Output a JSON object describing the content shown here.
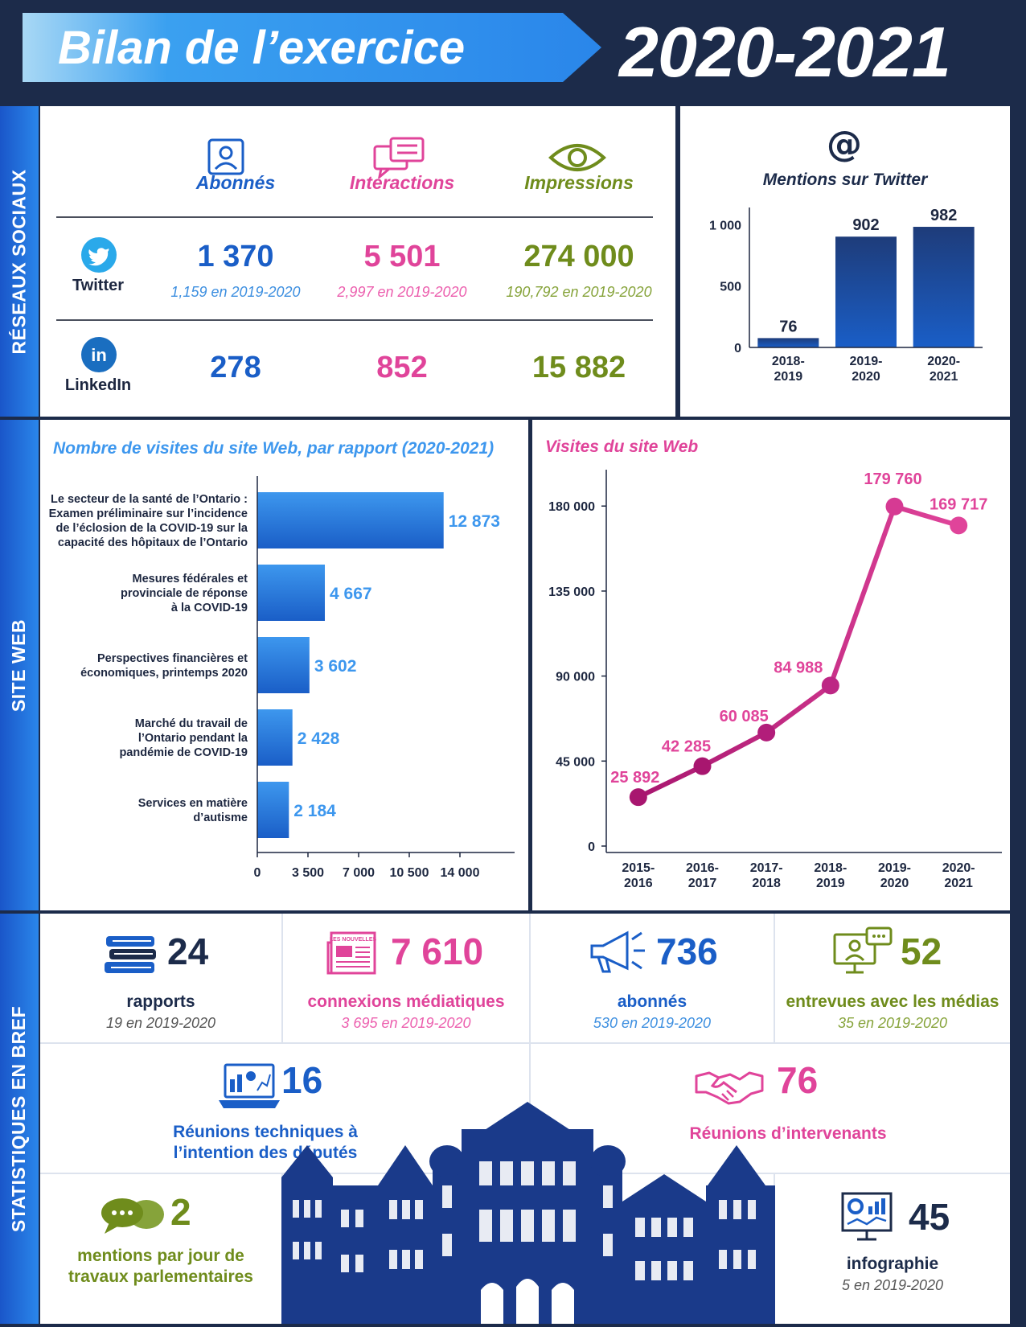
{
  "header": {
    "title": "Bilan de l’exercice",
    "year": "2020-2021"
  },
  "sections": {
    "social": "RÉSEAUX SOCIAUX",
    "web": "SITE WEB",
    "stats": "STATISTIQUES EN BREF"
  },
  "social": {
    "columns": [
      "Abonnés",
      "Interactions",
      "Impressions"
    ],
    "twitter": {
      "label": "Twitter",
      "values": [
        "1 370",
        "5 501",
        "274 000"
      ],
      "previous": [
        "1,159 en 2019-2020",
        "2,997 en 2019-2020",
        "190,792 en 2019-2020"
      ]
    },
    "linkedin": {
      "label": "LinkedIn",
      "values": [
        "278",
        "852",
        "15 882"
      ]
    }
  },
  "colors": {
    "blue": "#1a5ec7",
    "pink": "#e0449a",
    "green": "#6f8c1c",
    "navy": "#1c2b4a",
    "magenta": "#a8166f",
    "lightblue": "#3d97ee"
  },
  "chart_data": [
    {
      "type": "bar",
      "title": "Mentions sur Twitter",
      "categories": [
        "2018-\n2019",
        "2019-\n2020",
        "2020-\n2021"
      ],
      "values": [
        76,
        902,
        982
      ],
      "ylim": [
        0,
        1100
      ],
      "yticks": [
        "0",
        "500",
        "1 000"
      ],
      "data_labels": [
        "76",
        "902",
        "982"
      ]
    },
    {
      "type": "bar",
      "orientation": "horizontal",
      "title": "Nombre de visites du site Web, par rapport (2020-2021)",
      "categories": [
        "Le secteur de la santé de l’Ontario : Examen préliminaire sur l’incidence de l’éclosion de la COVID-19 sur la capacité des hôpitaux de l’Ontario",
        "Mesures fédérales et provinciale de réponse à la COVID-19",
        "Perspectives financières et économiques, printemps 2020",
        "Marché du travail de l’Ontario pendant la pandémie de COVID-19",
        "Services en matière d’autisme"
      ],
      "values": [
        12873,
        4667,
        3602,
        2428,
        2184
      ],
      "data_labels": [
        "12 873",
        "4 667",
        "3 602",
        "2 428",
        "2 184"
      ],
      "xlim": [
        0,
        15000
      ],
      "xticks": [
        "0",
        "3 500",
        "7 000",
        "10 500",
        "14 000"
      ]
    },
    {
      "type": "line",
      "title": "Visites du site Web",
      "categories": [
        "2015-\n2016",
        "2016-\n2017",
        "2017-\n2018",
        "2018-\n2019",
        "2019-\n2020",
        "2020-\n2021"
      ],
      "values": [
        25892,
        42285,
        60085,
        84988,
        179760,
        169717
      ],
      "data_labels": [
        "25 892",
        "42 285",
        "60 085",
        "84 988",
        "179 760",
        "169 717"
      ],
      "ylim": [
        0,
        195000
      ],
      "yticks": [
        "0",
        "45 000",
        "90 000",
        "135 000",
        "180 000"
      ]
    }
  ],
  "stats": {
    "reports": {
      "num": "24",
      "label": "rapports",
      "sub": "19 en 2019-2020"
    },
    "media": {
      "num": "7 610",
      "label": "connexions médiatiques",
      "sub": "3 695 en 2019-2020",
      "icon_text": "LES NOUVELLES"
    },
    "subscribers": {
      "num": "736",
      "label": "abonnés",
      "sub": "530 en 2019-2020"
    },
    "interviews": {
      "num": "52",
      "label": "entrevues avec les médias",
      "sub": "35 en 2019-2020"
    },
    "tech": {
      "num": "16",
      "label1": "Réunions techniques à",
      "label2": "l’intention des députés"
    },
    "stakeholders": {
      "num": "76",
      "label": "Réunions d’intervenants"
    },
    "mentions": {
      "num": "2",
      "label1": "mentions par jour de",
      "label2": "travaux parlementaires"
    },
    "infographics": {
      "num": "45",
      "label": "infographie",
      "sub": "5 en 2019-2020"
    }
  }
}
